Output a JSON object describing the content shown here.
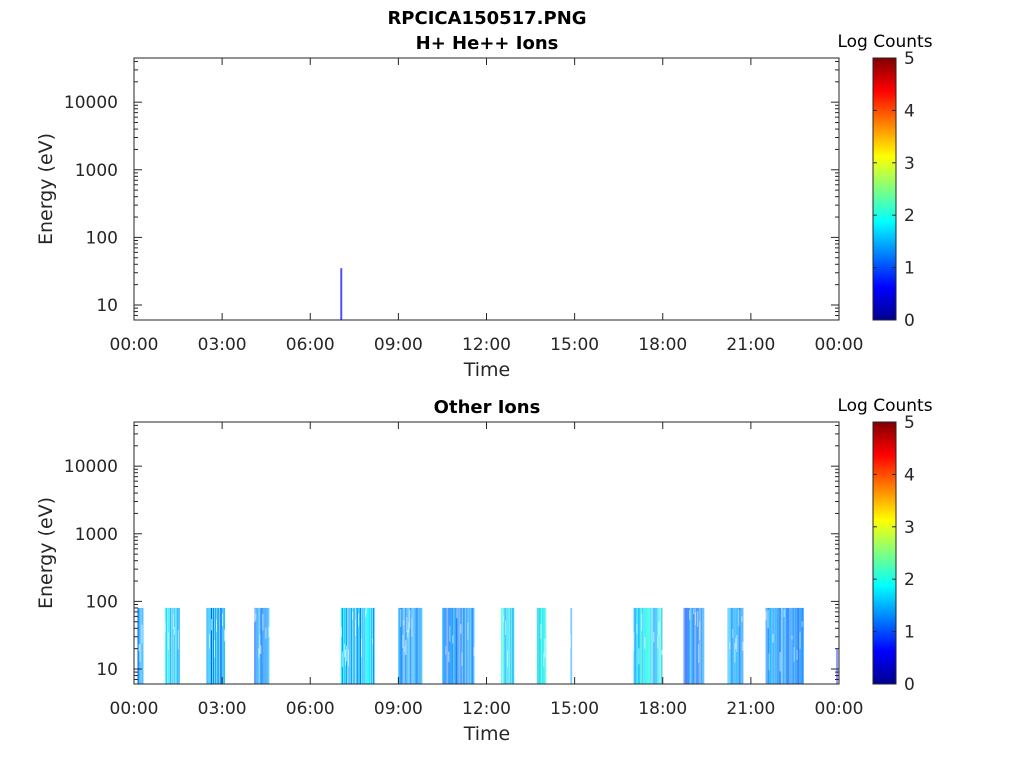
{
  "chart_data": [
    {
      "type": "heatmap",
      "title": "RPCICA150517.PNG",
      "subtitle": "H+ He++ Ions",
      "xlabel": "Time",
      "ylabel": "Energy (eV)",
      "x_ticks": [
        "00:00",
        "03:00",
        "06:00",
        "09:00",
        "12:00",
        "15:00",
        "18:00",
        "21:00",
        "00:00"
      ],
      "y_ticks": [
        "10",
        "100",
        "1000",
        "10000"
      ],
      "y_scale": "log",
      "ylim": [
        6,
        45000
      ],
      "xlim_hours": [
        0,
        24
      ],
      "colorbar": {
        "label": "Log Counts",
        "ticks": [
          "0",
          "1",
          "2",
          "3",
          "4",
          "5"
        ],
        "range": [
          0,
          5
        ],
        "colormap": "jet"
      },
      "bursts": [
        {
          "start_hour": 7.02,
          "end_hour": 7.08,
          "e_min": 6,
          "e_max": 35,
          "level": 0.1
        }
      ]
    },
    {
      "type": "heatmap",
      "title": "Other Ions",
      "xlabel": "Time",
      "ylabel": "Energy (eV)",
      "x_ticks": [
        "00:00",
        "03:00",
        "06:00",
        "09:00",
        "12:00",
        "15:00",
        "18:00",
        "21:00",
        "00:00"
      ],
      "y_ticks": [
        "10",
        "100",
        "1000",
        "10000"
      ],
      "y_scale": "log",
      "ylim": [
        6,
        45000
      ],
      "xlim_hours": [
        0,
        24
      ],
      "colorbar": {
        "label": "Log Counts",
        "ticks": [
          "0",
          "1",
          "2",
          "3",
          "4",
          "5"
        ],
        "range": [
          0,
          5
        ],
        "colormap": "jet"
      },
      "bursts": [
        {
          "start_hour": 0.12,
          "end_hour": 0.32,
          "e_min": 6,
          "e_max": 80,
          "level": 0.9
        },
        {
          "start_hour": 1.05,
          "end_hour": 1.55,
          "e_min": 6,
          "e_max": 80,
          "level": 1.3
        },
        {
          "start_hour": 2.45,
          "end_hour": 3.1,
          "e_min": 6,
          "e_max": 80,
          "level": 1.0
        },
        {
          "start_hour": 4.1,
          "end_hour": 4.6,
          "e_min": 6,
          "e_max": 80,
          "level": 0.9
        },
        {
          "start_hour": 7.05,
          "end_hour": 8.2,
          "e_min": 6,
          "e_max": 80,
          "level": 1.2
        },
        {
          "start_hour": 9.0,
          "end_hour": 9.8,
          "e_min": 6,
          "e_max": 80,
          "level": 1.0
        },
        {
          "start_hour": 10.5,
          "end_hour": 11.6,
          "e_min": 6,
          "e_max": 80,
          "level": 1.0
        },
        {
          "start_hour": 12.5,
          "end_hour": 12.95,
          "e_min": 6,
          "e_max": 80,
          "level": 1.4
        },
        {
          "start_hour": 13.7,
          "end_hour": 14.05,
          "e_min": 6,
          "e_max": 80,
          "level": 1.5
        },
        {
          "start_hour": 14.85,
          "end_hour": 14.92,
          "e_min": 6,
          "e_max": 80,
          "level": 1.0
        },
        {
          "start_hour": 17.0,
          "end_hour": 18.0,
          "e_min": 6,
          "e_max": 80,
          "level": 1.5
        },
        {
          "start_hour": 18.7,
          "end_hour": 19.4,
          "e_min": 6,
          "e_max": 80,
          "level": 0.9
        },
        {
          "start_hour": 20.2,
          "end_hour": 20.75,
          "e_min": 6,
          "e_max": 80,
          "level": 1.0
        },
        {
          "start_hour": 21.5,
          "end_hour": 22.8,
          "e_min": 6,
          "e_max": 80,
          "level": 0.9
        },
        {
          "start_hour": 23.9,
          "end_hour": 23.96,
          "e_min": 6,
          "e_max": 20,
          "level": 0.3
        }
      ]
    }
  ]
}
